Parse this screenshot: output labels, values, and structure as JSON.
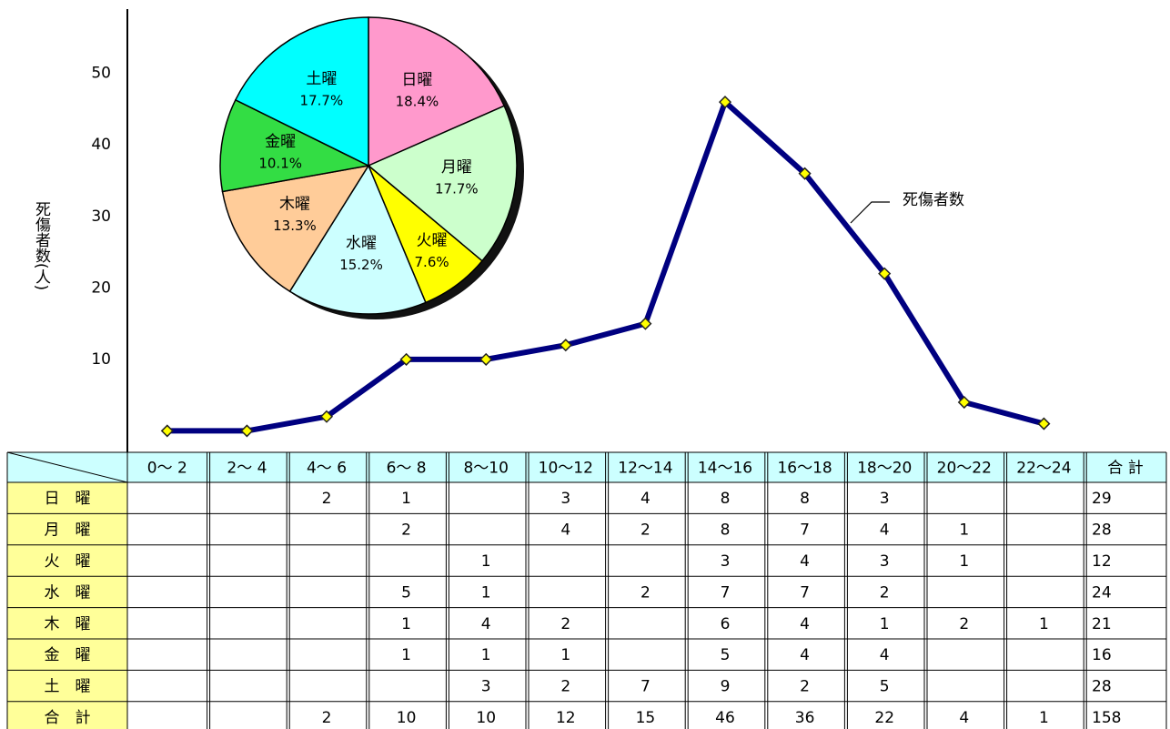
{
  "chart_data": {
    "type": "line",
    "ylabel": "死傷者数(人)",
    "ylim": [
      -3,
      59
    ],
    "yticks": [
      10,
      20,
      30,
      40,
      50
    ],
    "series": [
      {
        "name": "死傷者数",
        "color": "#000080",
        "values": [
          0,
          0,
          2,
          10,
          10,
          12,
          15,
          46,
          36,
          22,
          4,
          1
        ]
      }
    ],
    "inset": {
      "type": "pie",
      "categories": [
        "日曜",
        "月曜",
        "火曜",
        "水曜",
        "木曜",
        "金曜",
        "土曜"
      ],
      "values": [
        18.4,
        17.7,
        7.6,
        15.2,
        13.3,
        10.1,
        17.7
      ],
      "value_labels": [
        "18.4%",
        "17.7%",
        "7.6%",
        "15.2%",
        "13.3%",
        "10.1%",
        "17.7%"
      ],
      "colors": [
        "#ff99cc",
        "#ccffcc",
        "#ffff00",
        "#ccffff",
        "#ffcc99",
        "#33dd44",
        "#00ffff"
      ]
    }
  },
  "table": {
    "header": [
      "0～ 2",
      "2～ 4",
      "4～ 6",
      "6～ 8",
      "8～10",
      "10～12",
      "12～14",
      "14～16",
      "16～18",
      "18～20",
      "20～22",
      "22～24",
      "合 計"
    ],
    "rows": [
      {
        "label": "日　曜",
        "cells": [
          null,
          null,
          2,
          1,
          null,
          3,
          4,
          8,
          8,
          3,
          null,
          null,
          29
        ]
      },
      {
        "label": "月　曜",
        "cells": [
          null,
          null,
          null,
          2,
          null,
          4,
          2,
          8,
          7,
          4,
          1,
          null,
          28
        ]
      },
      {
        "label": "火　曜",
        "cells": [
          null,
          null,
          null,
          null,
          1,
          null,
          null,
          3,
          4,
          3,
          1,
          null,
          12
        ]
      },
      {
        "label": "水　曜",
        "cells": [
          null,
          null,
          null,
          5,
          1,
          null,
          2,
          7,
          7,
          2,
          null,
          null,
          24
        ]
      },
      {
        "label": "木　曜",
        "cells": [
          null,
          null,
          null,
          1,
          4,
          2,
          null,
          6,
          4,
          1,
          2,
          1,
          21
        ]
      },
      {
        "label": "金　曜",
        "cells": [
          null,
          null,
          null,
          1,
          1,
          1,
          null,
          5,
          4,
          4,
          null,
          null,
          16
        ]
      },
      {
        "label": "土　曜",
        "cells": [
          null,
          null,
          null,
          null,
          3,
          2,
          7,
          9,
          2,
          5,
          null,
          null,
          28
        ]
      },
      {
        "label": "合　計",
        "cells": [
          null,
          null,
          2,
          10,
          10,
          12,
          15,
          46,
          36,
          22,
          4,
          1,
          158
        ]
      }
    ]
  }
}
